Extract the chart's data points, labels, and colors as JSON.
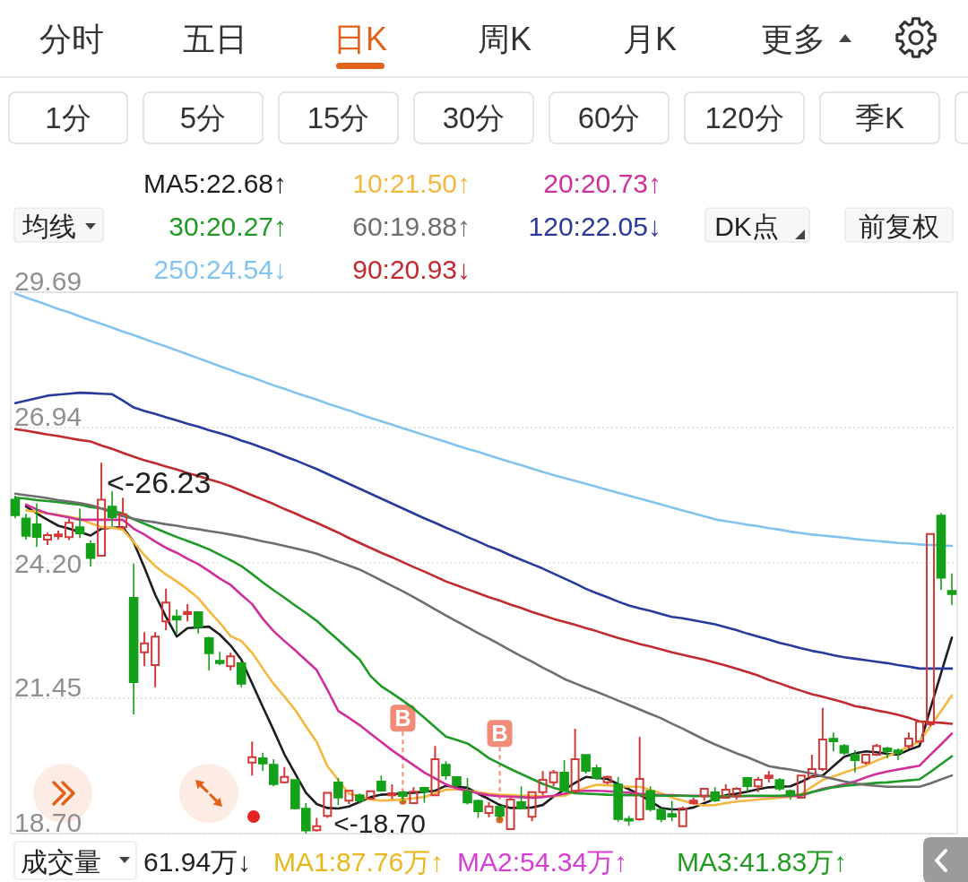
{
  "chart_data": {
    "type": "candlestick",
    "categories": [
      null,
      null,
      null,
      null,
      null,
      null,
      null,
      null,
      null,
      null,
      null,
      null,
      null,
      null,
      null,
      null,
      null,
      null,
      null,
      null,
      null,
      null,
      null,
      null,
      null,
      null,
      null,
      null,
      null,
      null,
      null,
      null,
      null,
      null,
      null,
      null,
      null,
      null,
      null,
      null,
      null,
      null,
      null,
      null,
      null,
      null,
      null,
      null,
      null,
      null,
      null,
      null,
      null,
      null,
      null,
      null,
      null,
      null,
      null,
      null,
      null,
      null,
      null,
      null,
      null,
      null,
      null,
      null,
      null,
      null,
      null,
      null,
      null,
      null,
      null,
      null,
      null,
      null,
      null,
      null,
      null,
      null,
      null,
      null,
      null,
      null,
      null,
      null
    ],
    "ohlc": [
      [
        25.48,
        25.56,
        25.1,
        25.16
      ],
      [
        25.1,
        25.19,
        24.67,
        24.74
      ],
      [
        24.98,
        25.4,
        24.52,
        24.72
      ],
      [
        24.67,
        24.81,
        24.56,
        24.76
      ],
      [
        24.74,
        24.85,
        24.67,
        24.77
      ],
      [
        24.72,
        25.09,
        24.66,
        25.01
      ],
      [
        24.92,
        25.3,
        24.7,
        24.79
      ],
      [
        24.58,
        24.65,
        24.12,
        24.29
      ],
      [
        24.34,
        26.23,
        24.33,
        25.48
      ],
      [
        25.34,
        25.65,
        24.94,
        25.12
      ],
      [
        24.92,
        25.52,
        24.89,
        25.18
      ],
      [
        23.49,
        24.18,
        21.12,
        21.77
      ],
      [
        22.38,
        22.79,
        22.1,
        22.56
      ],
      [
        22.12,
        22.79,
        21.67,
        22.7
      ],
      [
        23.01,
        23.67,
        22.83,
        23.39
      ],
      [
        23.11,
        23.25,
        22.76,
        23.04
      ],
      [
        23.16,
        23.36,
        23.01,
        23.2
      ],
      [
        23.2,
        23.21,
        22.76,
        22.89
      ],
      [
        22.67,
        22.7,
        22.01,
        22.36
      ],
      [
        22.21,
        22.39,
        22.12,
        22.16
      ],
      [
        22.1,
        22.37,
        22.01,
        22.3
      ],
      [
        22.16,
        22.19,
        21.67,
        21.74
      ],
      [
        20.14,
        20.57,
        19.88,
        20.25
      ],
      [
        20.23,
        20.34,
        19.97,
        20.12
      ],
      [
        20.1,
        20.21,
        19.66,
        19.7
      ],
      [
        19.74,
        20.05,
        19.72,
        19.85
      ],
      [
        19.79,
        19.8,
        19.19,
        19.21
      ],
      [
        19.21,
        19.32,
        18.7,
        18.76
      ],
      [
        18.77,
        19.02,
        18.74,
        18.85
      ],
      [
        19.06,
        19.54,
        19.02,
        19.53
      ],
      [
        19.74,
        19.83,
        19.28,
        19.43
      ],
      [
        19.37,
        19.58,
        19.3,
        19.57
      ],
      [
        19.48,
        19.52,
        19.31,
        19.37
      ],
      [
        19.41,
        19.57,
        19.39,
        19.56
      ],
      [
        19.76,
        19.88,
        19.55,
        19.57
      ],
      [
        19.48,
        19.7,
        19.4,
        19.52
      ],
      [
        19.54,
        19.57,
        19.36,
        19.46
      ],
      [
        19.32,
        19.64,
        19.3,
        19.55
      ],
      [
        19.63,
        19.65,
        19.33,
        19.55
      ],
      [
        19.48,
        20.48,
        19.46,
        20.21
      ],
      [
        20.1,
        20.17,
        19.79,
        19.88
      ],
      [
        19.85,
        19.86,
        19.64,
        19.68
      ],
      [
        19.55,
        19.83,
        19.29,
        19.33
      ],
      [
        19.37,
        19.39,
        19.02,
        19.15
      ],
      [
        19.12,
        19.34,
        19.03,
        19.25
      ],
      [
        19.25,
        19.26,
        18.98,
        19.06
      ],
      [
        18.79,
        19.43,
        18.77,
        19.39
      ],
      [
        19.34,
        19.66,
        19.19,
        19.21
      ],
      [
        19.04,
        19.56,
        18.95,
        19.54
      ],
      [
        19.54,
        19.97,
        19.48,
        19.79
      ],
      [
        19.74,
        19.99,
        19.66,
        19.94
      ],
      [
        19.94,
        20.19,
        19.55,
        19.57
      ],
      [
        19.57,
        20.83,
        19.52,
        20.21
      ],
      [
        20.3,
        20.31,
        19.92,
        19.97
      ],
      [
        20.03,
        20.1,
        19.79,
        19.83
      ],
      [
        19.74,
        19.88,
        19.7,
        19.85
      ],
      [
        19.7,
        19.85,
        18.94,
        18.99
      ],
      [
        18.99,
        19.06,
        18.86,
        18.97
      ],
      [
        18.99,
        20.66,
        18.96,
        19.81
      ],
      [
        19.57,
        19.66,
        19.15,
        19.19
      ],
      [
        19.19,
        19.21,
        18.93,
        18.99
      ],
      [
        19.1,
        19.37,
        18.95,
        19.04
      ],
      [
        18.85,
        19.25,
        18.83,
        19.21
      ],
      [
        19.32,
        19.43,
        19.29,
        19.37
      ],
      [
        19.46,
        19.63,
        19.37,
        19.61
      ],
      [
        19.54,
        19.64,
        19.34,
        19.37
      ],
      [
        19.43,
        19.7,
        19.41,
        19.59
      ],
      [
        19.46,
        19.64,
        19.39,
        19.61
      ],
      [
        19.83,
        19.85,
        19.55,
        19.66
      ],
      [
        19.66,
        19.85,
        19.54,
        19.79
      ],
      [
        19.83,
        19.97,
        19.74,
        19.88
      ],
      [
        19.79,
        19.83,
        19.57,
        19.61
      ],
      [
        19.57,
        19.59,
        19.39,
        19.5
      ],
      [
        19.43,
        19.88,
        19.41,
        19.88
      ],
      [
        19.85,
        20.3,
        19.83,
        20.01
      ],
      [
        20.01,
        21.25,
        19.97,
        20.61
      ],
      [
        20.63,
        20.75,
        20.37,
        20.57
      ],
      [
        20.48,
        20.52,
        20.3,
        20.34
      ],
      [
        20.3,
        20.39,
        19.94,
        20.19
      ],
      [
        20.14,
        20.3,
        20.1,
        20.3
      ],
      [
        20.3,
        20.52,
        20.28,
        20.48
      ],
      [
        20.43,
        20.46,
        20.23,
        20.37
      ],
      [
        20.39,
        20.43,
        20.19,
        20.34
      ],
      [
        20.48,
        20.75,
        20.43,
        20.63
      ],
      [
        20.57,
        20.99,
        20.55,
        20.97
      ],
      [
        20.92,
        24.78,
        20.88,
        24.78
      ],
      [
        25.16,
        25.21,
        23.65,
        23.89
      ],
      [
        23.63,
        23.98,
        23.34,
        23.56
      ]
    ],
    "series": [
      {
        "type": "line",
        "name": "MA5:22.68↑",
        "color": "#1e1e1e",
        "values": [
          null,
          25.34,
          25.2,
          25.07,
          24.95,
          24.89,
          null,
          24.75,
          24.89,
          24.91,
          24.92,
          24.62,
          24.1,
          23.55,
          23.1,
          22.7,
          22.87,
          null,
          22.9,
          22.74,
          22.52,
          22.23,
          21.75,
          21.27,
          20.8,
          20.31,
          null,
          19.53,
          19.3,
          19.22,
          19.21,
          19.25,
          null,
          19.44,
          19.49,
          19.5,
          null,
          19.53,
          null,
          19.57,
          19.67,
          null,
          19.63,
          19.51,
          19.4,
          19.28,
          19.22,
          null,
          19.23,
          19.28,
          19.45,
          null,
          19.73,
          19.85,
          null,
          19.81,
          null,
          19.6,
          19.49,
          null,
          19.22,
          19.19,
          19.19,
          19.23,
          19.32,
          null,
          19.48,
          19.51,
          19.55,
          19.6,
          19.64,
          null,
          19.66,
          19.75,
          19.86,
          19.88,
          20.07,
          20.26,
          20.33,
          20.37,
          20.35,
          20.32,
          20.3,
          20.4,
          20.48,
          21.23,
          21.96,
          22.68
        ]
      },
      {
        "type": "line",
        "name": "10:21.50↑",
        "color": "#f4b740",
        "values": [
          null,
          25.26,
          25.23,
          25.2,
          25.17,
          25.13,
          25.09,
          25.0,
          24.92,
          24.91,
          24.87,
          24.62,
          24.35,
          24.13,
          23.96,
          23.82,
          23.66,
          23.48,
          23.22,
          22.98,
          22.71,
          22.61,
          22.37,
          22.05,
          21.74,
          21.48,
          21.21,
          20.88,
          20.56,
          20.07,
          null,
          19.51,
          null,
          19.39,
          19.37,
          19.38,
          19.39,
          19.42,
          19.44,
          19.52,
          19.59,
          19.6,
          null,
          19.54,
          19.51,
          19.49,
          19.48,
          19.47,
          19.47,
          19.46,
          19.46,
          19.47,
          19.55,
          19.63,
          19.69,
          19.68,
          null,
          19.65,
          19.65,
          null,
          19.52,
          19.43,
          19.37,
          19.31,
          19.27,
          19.28,
          19.32,
          19.35,
          19.37,
          19.39,
          19.41,
          19.43,
          19.45,
          19.5,
          19.65,
          19.79,
          19.86,
          19.94,
          20.01,
          20.08,
          20.18,
          20.27,
          null,
          20.46,
          20.57,
          20.88,
          21.19,
          21.5
        ]
      },
      {
        "type": "line",
        "name": "20:20.73↑",
        "color": "#d02f9c",
        "values": [
          null,
          25.38,
          25.28,
          25.2,
          25.16,
          25.12,
          25.07,
          25.07,
          25.07,
          25.07,
          25.07,
          24.89,
          24.77,
          24.63,
          24.5,
          24.4,
          24.28,
          24.17,
          24.03,
          23.88,
          23.75,
          23.55,
          23.36,
          23.06,
          22.81,
          22.61,
          22.42,
          22.22,
          22.02,
          21.62,
          21.19,
          21.05,
          20.9,
          20.73,
          20.56,
          20.39,
          20.24,
          20.09,
          19.94,
          19.82,
          19.7,
          19.62,
          null,
          19.52,
          19.48,
          19.46,
          19.45,
          19.44,
          19.43,
          19.44,
          19.47,
          19.51,
          19.56,
          19.57,
          19.57,
          19.56,
          null,
          19.53,
          19.51,
          null,
          19.48,
          19.48,
          19.47,
          19.47,
          19.47,
          null,
          19.46,
          19.46,
          19.46,
          19.46,
          19.46,
          19.46,
          19.46,
          19.47,
          19.54,
          19.61,
          19.65,
          19.7,
          19.76,
          19.84,
          19.91,
          19.96,
          20.0,
          20.04,
          20.08,
          20.3,
          20.51,
          20.73
        ]
      },
      {
        "type": "line",
        "name": "30:20.27↑",
        "color": "#1f9a26",
        "values": [
          25.52,
          25.5,
          25.47,
          25.45,
          25.43,
          25.4,
          25.38,
          25.33,
          25.3,
          null,
          25.2,
          25.08,
          24.99,
          24.9,
          24.81,
          24.72,
          24.64,
          24.56,
          24.47,
          24.36,
          24.25,
          24.13,
          23.97,
          23.8,
          23.64,
          23.49,
          23.33,
          23.18,
          23.02,
          22.82,
          22.63,
          22.43,
          22.23,
          21.9,
          21.69,
          21.55,
          21.4,
          21.24,
          21.05,
          20.86,
          20.67,
          20.6,
          20.53,
          20.39,
          20.23,
          20.12,
          20.01,
          19.91,
          19.81,
          19.71,
          19.63,
          null,
          19.52,
          19.51,
          19.5,
          19.49,
          null,
          19.48,
          19.48,
          null,
          19.47,
          19.47,
          19.47,
          19.46,
          19.46,
          null,
          19.46,
          19.46,
          19.47,
          19.47,
          19.47,
          19.47,
          null,
          19.49,
          19.54,
          19.59,
          19.64,
          19.67,
          19.69,
          19.71,
          19.73,
          19.74,
          19.76,
          19.78,
          19.8,
          19.95,
          20.11,
          20.27
        ]
      },
      {
        "type": "line",
        "name": "60:19.88↑",
        "color": "#6e6e6e",
        "values": [
          25.6,
          25.57,
          25.54,
          25.51,
          25.47,
          25.44,
          25.41,
          25.37,
          25.3,
          null,
          25.14,
          25.09,
          25.05,
          25.02,
          24.98,
          24.95,
          24.91,
          24.88,
          24.84,
          24.81,
          24.77,
          24.73,
          24.68,
          24.63,
          24.59,
          24.54,
          24.49,
          24.44,
          24.38,
          24.3,
          24.22,
          24.14,
          24.06,
          23.95,
          23.84,
          23.73,
          23.62,
          23.5,
          23.38,
          23.25,
          23.13,
          23.01,
          22.89,
          22.77,
          22.66,
          22.54,
          22.42,
          22.3,
          22.19,
          22.07,
          21.96,
          21.84,
          21.75,
          21.66,
          21.58,
          21.49,
          21.4,
          21.31,
          21.22,
          21.13,
          21.04,
          20.93,
          20.83,
          20.72,
          20.61,
          20.51,
          20.42,
          20.33,
          20.25,
          20.16,
          20.07,
          20.03,
          20.0,
          19.96,
          19.92,
          19.86,
          19.81,
          19.76,
          19.72,
          19.69,
          19.67,
          19.65,
          19.65,
          19.65,
          19.65,
          19.72,
          19.8,
          19.88
        ]
      },
      {
        "type": "line",
        "name": "120:22.05↓",
        "color": "#283b9c",
        "values": [
          27.44,
          27.49,
          27.54,
          27.59,
          27.61,
          27.63,
          27.65,
          27.64,
          27.63,
          27.62,
          27.49,
          27.35,
          27.28,
          27.22,
          27.15,
          27.09,
          27.02,
          26.96,
          26.89,
          26.83,
          26.76,
          26.68,
          26.61,
          26.53,
          26.45,
          26.36,
          26.28,
          26.19,
          26.1,
          26.0,
          25.9,
          25.8,
          25.7,
          25.6,
          25.5,
          25.4,
          25.3,
          25.2,
          25.1,
          25.01,
          24.91,
          24.82,
          24.72,
          24.63,
          24.53,
          24.45,
          24.35,
          24.26,
          24.17,
          24.08,
          23.98,
          23.88,
          23.78,
          23.67,
          23.58,
          23.5,
          23.41,
          23.33,
          23.27,
          23.22,
          23.16,
          23.1,
          23.07,
          23.03,
          22.99,
          22.95,
          22.89,
          22.83,
          22.76,
          22.7,
          22.64,
          22.57,
          22.52,
          22.46,
          22.41,
          22.37,
          22.32,
          22.28,
          22.25,
          22.22,
          22.19,
          22.16,
          22.12,
          22.09,
          22.05,
          22.05,
          22.05,
          22.05
        ]
      },
      {
        "type": "line",
        "name": "250:24.54↓",
        "color": "#82c4ef",
        "values": [
          29.66,
          29.58,
          29.51,
          29.43,
          29.35,
          29.28,
          29.2,
          29.12,
          29.05,
          28.97,
          28.89,
          28.82,
          28.74,
          28.66,
          28.59,
          28.51,
          28.43,
          28.35,
          28.27,
          28.19,
          28.11,
          28.03,
          27.96,
          27.88,
          27.8,
          27.73,
          27.65,
          27.58,
          27.51,
          27.43,
          27.36,
          27.29,
          27.21,
          27.14,
          27.07,
          27.0,
          26.93,
          26.86,
          26.79,
          26.72,
          26.65,
          26.58,
          26.51,
          26.45,
          26.38,
          26.31,
          26.24,
          26.18,
          26.11,
          26.04,
          25.98,
          25.92,
          25.86,
          25.8,
          25.74,
          25.68,
          25.62,
          25.56,
          25.5,
          25.44,
          25.38,
          25.32,
          25.26,
          25.2,
          25.14,
          25.08,
          25.04,
          25.01,
          24.97,
          24.94,
          24.9,
          24.87,
          24.83,
          24.8,
          24.77,
          24.75,
          24.73,
          24.71,
          24.68,
          24.66,
          24.64,
          24.62,
          24.6,
          24.59,
          24.57,
          24.56,
          null,
          24.54
        ]
      },
      {
        "type": "line",
        "name": "90:20.93↓",
        "color": "#c12a2f",
        "values": [
          26.91,
          26.88,
          26.84,
          26.8,
          26.77,
          26.73,
          26.69,
          26.66,
          26.58,
          26.51,
          26.43,
          26.35,
          26.28,
          26.22,
          26.15,
          26.09,
          26.02,
          25.96,
          25.89,
          25.83,
          25.75,
          25.66,
          25.57,
          25.48,
          25.39,
          25.29,
          25.2,
          25.1,
          25.01,
          24.91,
          24.81,
          24.7,
          24.6,
          24.5,
          24.4,
          24.31,
          24.21,
          24.11,
          24.02,
          23.92,
          23.82,
          23.74,
          23.66,
          23.58,
          23.5,
          23.43,
          23.35,
          23.28,
          23.2,
          23.13,
          23.06,
          23.0,
          22.94,
          22.87,
          22.81,
          22.74,
          22.67,
          22.61,
          22.55,
          22.5,
          22.44,
          22.38,
          22.33,
          22.28,
          22.23,
          22.17,
          22.11,
          22.05,
          21.98,
          21.91,
          21.82,
          21.75,
          21.67,
          21.6,
          21.53,
          21.48,
          21.42,
          21.36,
          21.29,
          21.25,
          21.2,
          21.16,
          21.11,
          21.05,
          20.98,
          20.96,
          20.95,
          20.93
        ]
      }
    ],
    "ylim": [
      18.7,
      29.69
    ],
    "yticks": [
      29.69,
      26.94,
      {
        "value": 24.2,
        "label": "24.20"
      },
      21.45,
      {
        "value": 18.7,
        "label": "18.70"
      }
    ],
    "grid": "y",
    "legend": "top",
    "tick_labels": "y",
    "annotations": [
      "分时",
      "五日",
      "日K",
      "周K",
      "月K",
      "更多",
      "1分",
      "5分",
      "15分",
      "30分",
      "60分",
      "120分",
      "季K",
      "均线",
      "DK点",
      "前复权",
      "成交量",
      "61.94万↓",
      "MA1:87.76万↑",
      "MA2:54.34万↑",
      "MA3:41.83万↑",
      "<-18.70",
      {
        "text": "<-26.23",
        "y": 26.23
      },
      {
        "text": "B",
        "y": 19.36
      },
      {
        "text": "B",
        "y": 18.98
      }
    ]
  }
}
